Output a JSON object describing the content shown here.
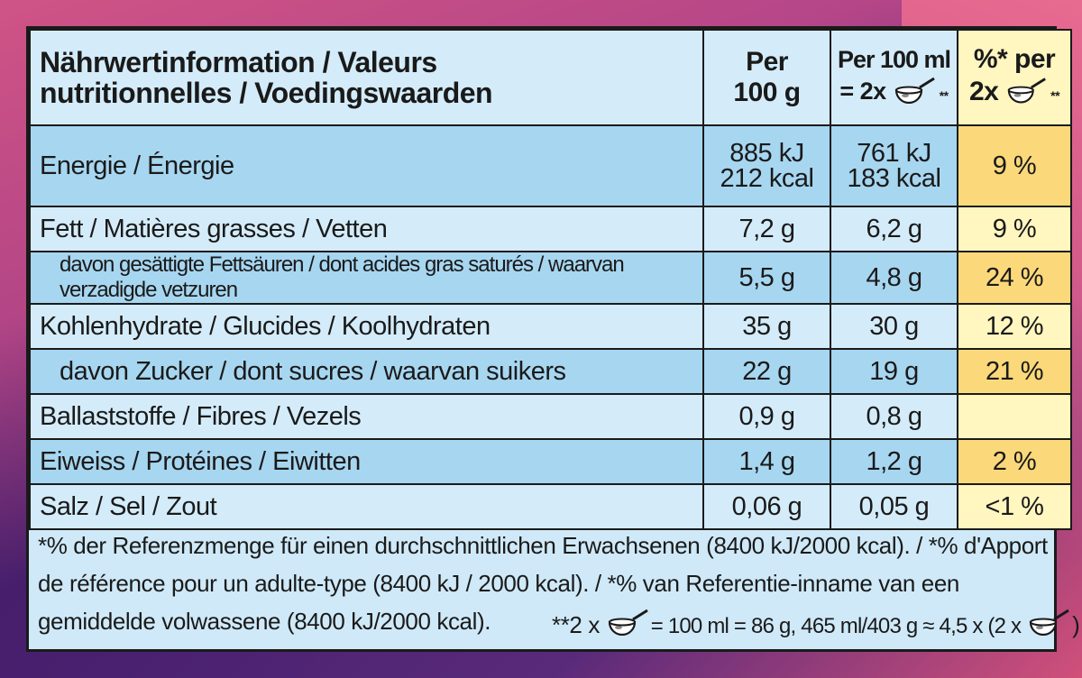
{
  "header": {
    "label_line1": "Nährwertinformation / Valeurs",
    "label_line2": "nutritionnelles / Voedingswaarden",
    "per100g_line1": "Per",
    "per100g_line2": "100 g",
    "per100ml_line1": "Per 100 ml",
    "per100ml_line2_prefix": "= 2x",
    "per100ml_stars": "**",
    "pct_line1": "%* per",
    "pct_line2_prefix": "2x",
    "pct_stars": "**"
  },
  "rows": [
    {
      "label": "Energie / Énergie",
      "per100g_line1": "885 kJ",
      "per100g_line2": "212 kcal",
      "per100ml_line1": "761 kJ",
      "per100ml_line2": "183 kcal",
      "pct": "9 %"
    },
    {
      "label": "Fett / Matières grasses / Vetten",
      "per100g": "7,2 g",
      "per100ml": "6,2 g",
      "pct": "9 %"
    },
    {
      "label": "davon gesättigte Fettsäuren / dont acides gras saturés / waarvan verzadigde vetzuren",
      "per100g": "5,5 g",
      "per100ml": "4,8 g",
      "pct": "24 %"
    },
    {
      "label": "Kohlenhydrate / Glucides / Koolhydraten",
      "per100g": "35 g",
      "per100ml": "30 g",
      "pct": "12 %"
    },
    {
      "label": "davon Zucker / dont sucres / waarvan suikers",
      "per100g": "22 g",
      "per100ml": "19 g",
      "pct": "21 %"
    },
    {
      "label": "Ballaststoffe / Fibres / Vezels",
      "per100g": "0,9 g",
      "per100ml": "0,8 g",
      "pct": ""
    },
    {
      "label": "Eiweiss / Protéines / Eiwitten",
      "per100g": "1,4 g",
      "per100ml": "1,2 g",
      "pct": "2 %"
    },
    {
      "label": "Salz / Sel / Zout",
      "per100g": "0,06 g",
      "per100ml": "0,05 g",
      "pct": "<1 %"
    }
  ],
  "footnote": {
    "line1": "*% der Referenzmenge für einen durchschnittlichen Erwachsenen (8400 kJ/2000 kcal). / *% d'Apport",
    "line2": "de référence pour un adulte-type (8400 kJ / 2000 kcal). / *% van Referentie-inname van een",
    "line3": "gemiddelde volwassene (8400 kJ/2000 kcal).",
    "serving_prefix": "**2 x",
    "serving_mid": "= 100 ml = 86 g, 465 ml/403 g ≈ 4,5 x (2 x",
    "serving_suffix": ")"
  },
  "icons": {
    "serving": "ice-cream-scoop-icon"
  },
  "colors": {
    "blue_light": "#d4ecfa",
    "blue_shade": "#a7d6f0",
    "yellow_light": "#fff6c0",
    "yellow_mid": "#fde9a0",
    "yellow_dark": "#fbd97a"
  }
}
